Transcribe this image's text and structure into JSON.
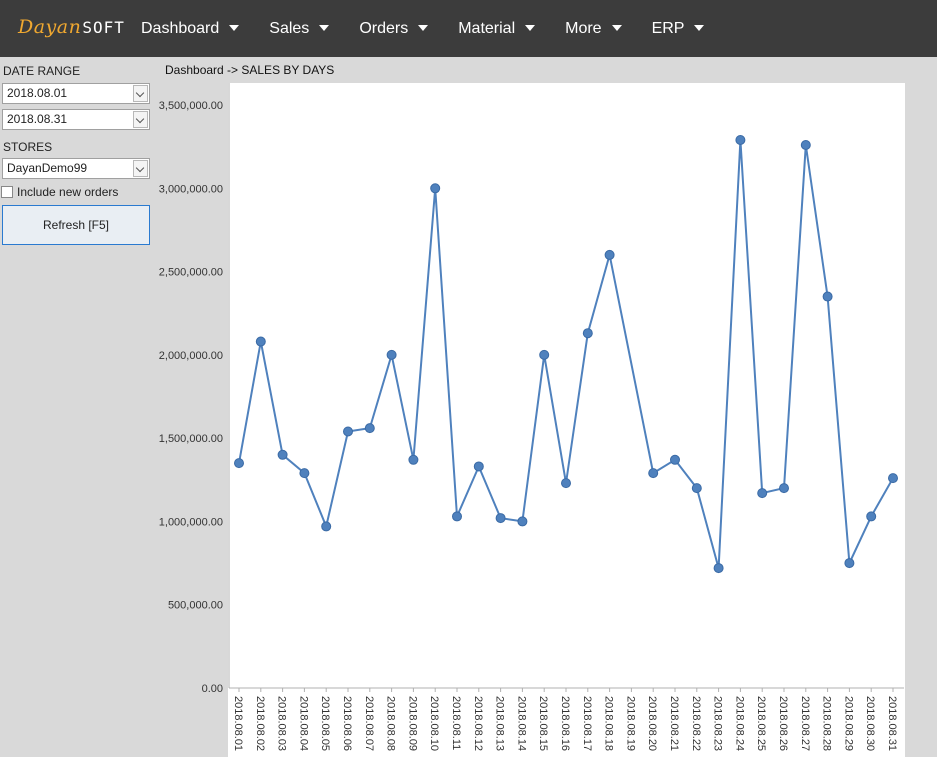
{
  "app": {
    "logo_part1": "Dayan",
    "logo_part2": "SOFT"
  },
  "menu": [
    {
      "label": "Dashboard"
    },
    {
      "label": "Sales"
    },
    {
      "label": "Orders"
    },
    {
      "label": "Material"
    },
    {
      "label": "More"
    },
    {
      "label": "ERP"
    }
  ],
  "sidebar": {
    "date_range_label": "DATE RANGE",
    "date_from": "2018.08.01",
    "date_to": "2018.08.31",
    "stores_label": "STORES",
    "store": "DayanDemo99",
    "include_new_orders_label": "Include new orders",
    "include_new_orders_checked": false,
    "refresh_label": "Refresh [F5]"
  },
  "breadcrumb": "Dashboard -> SALES BY DAYS",
  "colors": {
    "navbar": "#3c3c3c",
    "logo_accent": "#f0a830",
    "series": "#4f81bd",
    "sidebar": "#d9d9d9"
  },
  "chart_data": {
    "type": "line",
    "title": "",
    "xlabel": "",
    "ylabel": "",
    "ylim": [
      0,
      3500000
    ],
    "yticks": [
      0,
      500000,
      1000000,
      1500000,
      2000000,
      2500000,
      3000000,
      3500000
    ],
    "ytick_labels": [
      "0.00",
      "500,000.00",
      "1,000,000.00",
      "1,500,000.00",
      "2,000,000.00",
      "2,500,000.00",
      "3,000,000.00",
      "3,500,000.00"
    ],
    "grid": false,
    "categories": [
      "2018.08.01",
      "2018.08.02",
      "2018.08.03",
      "2018.08.04",
      "2018.08.05",
      "2018.08.06",
      "2018.08.07",
      "2018.08.08",
      "2018.08.09",
      "2018.08.10",
      "2018.08.11",
      "2018.08.12",
      "2018.08.13",
      "2018.08.14",
      "2018.08.15",
      "2018.08.16",
      "2018.08.17",
      "2018.08.18",
      "2018.08.19",
      "2018.08.20",
      "2018.08.21",
      "2018.08.22",
      "2018.08.23",
      "2018.08.24",
      "2018.08.25",
      "2018.08.26",
      "2018.08.27",
      "2018.08.28",
      "2018.08.29",
      "2018.08.30",
      "2018.08.31"
    ],
    "values": [
      1350000,
      2080000,
      1400000,
      1290000,
      970000,
      1540000,
      1560000,
      2000000,
      1370000,
      3000000,
      1030000,
      1330000,
      1020000,
      1000000,
      2000000,
      1230000,
      2130000,
      2600000,
      null,
      1290000,
      1370000,
      1200000,
      720000,
      3290000,
      1170000,
      1200000,
      3260000,
      2350000,
      750000,
      1030000,
      1260000
    ]
  }
}
